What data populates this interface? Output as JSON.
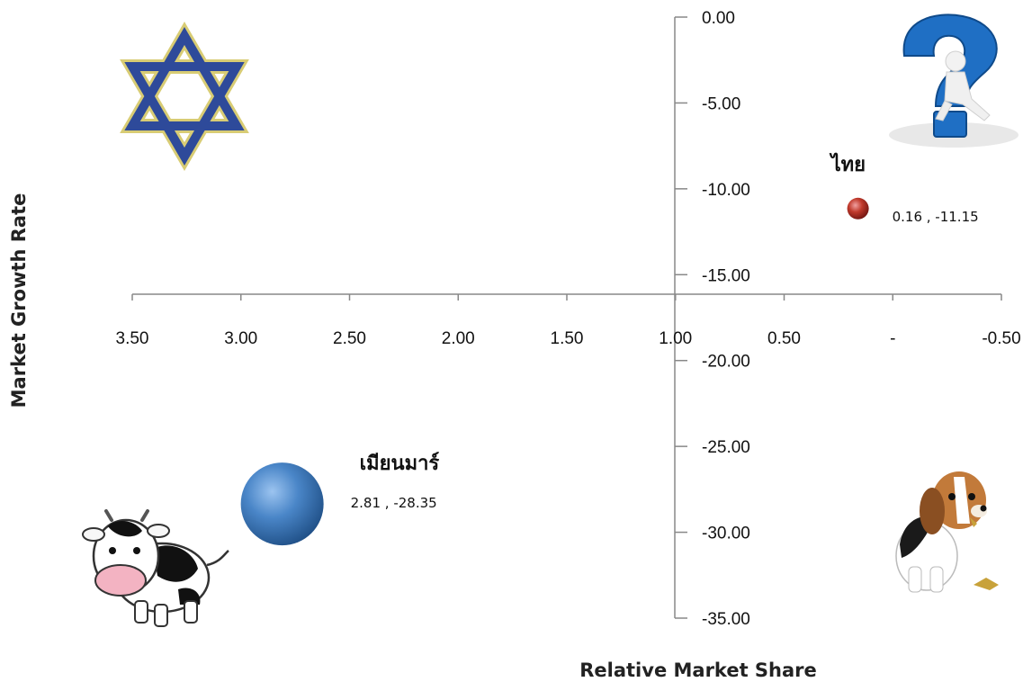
{
  "chart_data": {
    "type": "scatter",
    "title": "",
    "xlabel": "Relative Market Share",
    "ylabel": "Market  Growth Rate",
    "xlim": [
      3.5,
      -0.5
    ],
    "ylim": [
      -35,
      0
    ],
    "x_ticks": [
      "3.50",
      "3.00",
      "2.50",
      "2.00",
      "1.50",
      "1.00",
      "0.50",
      "-",
      "-0.50"
    ],
    "y_ticks": [
      "0.00",
      "-5.00",
      "-10.00",
      "-15.00",
      "-20.00",
      "-25.00",
      "-30.00",
      "-35.00"
    ],
    "points": [
      {
        "name": "ไทย",
        "x": 0.16,
        "y": -11.15,
        "value_label": "0.16 , -11.15",
        "color": "#c0392b",
        "size": "small"
      },
      {
        "name": "เมียนมาร์",
        "x": 2.81,
        "y": -28.35,
        "value_label": "2.81 , -28.35",
        "color": "#3f77b8",
        "size": "large"
      }
    ],
    "quadrant_icons": {
      "top_left": "star-icon",
      "top_right": "question-mark-icon",
      "bottom_left": "cow-icon",
      "bottom_right": "dog-icon"
    }
  }
}
